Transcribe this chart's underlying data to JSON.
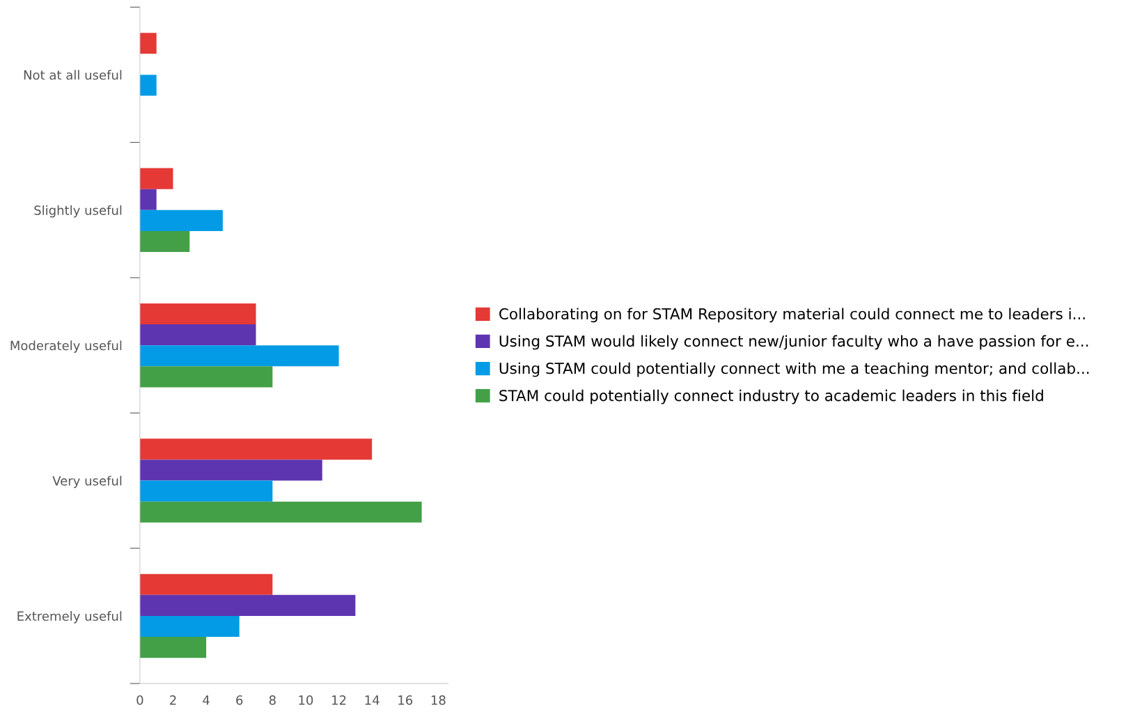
{
  "chart_data": {
    "type": "bar",
    "orientation": "horizontal",
    "categories": [
      "Not at all useful",
      "Slightly useful",
      "Moderately useful",
      "Very useful",
      "Extremely useful"
    ],
    "series": [
      {
        "name": "Collaborating on for STAM Repository material could connect me to leaders i...",
        "color": "#e53935",
        "values": [
          1,
          2,
          7,
          14,
          8
        ]
      },
      {
        "name": "Using STAM would likely connect new/junior faculty who a have passion for e...",
        "color": "#5e35b1",
        "values": [
          null,
          1,
          7,
          11,
          13
        ]
      },
      {
        "name": "Using STAM could potentially connect with me a teaching mentor; and collab...",
        "color": "#039be5",
        "values": [
          1,
          5,
          12,
          8,
          6
        ]
      },
      {
        "name": "STAM could potentially connect industry to academic leaders in this field",
        "color": "#43a047",
        "values": [
          null,
          3,
          8,
          17,
          4
        ]
      }
    ],
    "xlim": [
      0,
      18.6
    ],
    "xticks": [
      0,
      2,
      4,
      6,
      8,
      10,
      12,
      14,
      16,
      18
    ],
    "grid": false,
    "legend": "right"
  }
}
